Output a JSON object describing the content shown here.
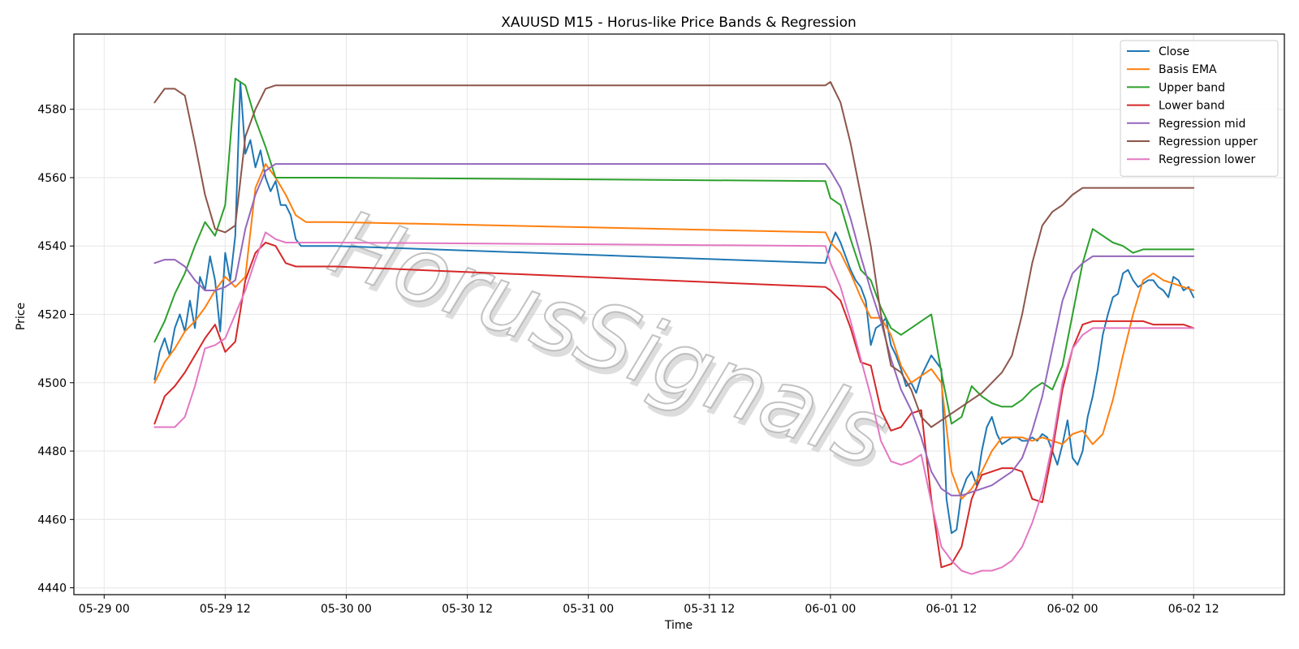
{
  "chart_data": {
    "type": "line",
    "title": "XAUUSD M15 - Horus-like Price Bands & Regression",
    "xlabel": "Time",
    "ylabel": "Price",
    "xlim": [
      -3.0,
      117.0
    ],
    "ylim": [
      4438,
      4602
    ],
    "x_ticks": [
      {
        "label": "05-29 00",
        "value": 0
      },
      {
        "label": "05-29 12",
        "value": 12
      },
      {
        "label": "05-30 00",
        "value": 24
      },
      {
        "label": "05-30 12",
        "value": 36
      },
      {
        "label": "05-31 00",
        "value": 48
      },
      {
        "label": "05-31 12",
        "value": 60
      },
      {
        "label": "06-01 00",
        "value": 72
      },
      {
        "label": "06-01 12",
        "value": 84
      },
      {
        "label": "06-02 00",
        "value": 96
      },
      {
        "label": "06-02 12",
        "value": 108
      }
    ],
    "y_ticks": [
      4440,
      4460,
      4480,
      4500,
      4520,
      4540,
      4560,
      4580
    ],
    "x_unit": "hours since 05-29 00",
    "grid": true,
    "legend_position": "top-right",
    "watermark": "HorusSignals",
    "series": [
      {
        "name": "Close",
        "color": "#1f77b4",
        "x": [
          5,
          5.5,
          6,
          6.5,
          7,
          7.5,
          8,
          8.5,
          9,
          9.5,
          10,
          10.5,
          11,
          11.5,
          12,
          12.5,
          13,
          13.5,
          14,
          14.5,
          15,
          15.5,
          16,
          16.5,
          17,
          17.5,
          18,
          18.5,
          19,
          19.5,
          20,
          20.5,
          21,
          21.5,
          22,
          22.5,
          23,
          71.5,
          72,
          72.5,
          73,
          73.5,
          74,
          74.5,
          75,
          75.5,
          76,
          76.5,
          77,
          77.5,
          78,
          78.5,
          79,
          79.5,
          80,
          80.5,
          81,
          81.5,
          82,
          82.5,
          83,
          83.5,
          84,
          84.5,
          85,
          85.5,
          86,
          86.5,
          87,
          87.5,
          88,
          88.5,
          89,
          89.5,
          90,
          90.5,
          91,
          91.5,
          92,
          92.5,
          93,
          93.5,
          94,
          94.5,
          95,
          95.5,
          96,
          96.5,
          97,
          97.5,
          98,
          98.5,
          99,
          99.5,
          100,
          100.5,
          101,
          101.5,
          102,
          102.5,
          103,
          103.5,
          104,
          104.5,
          105,
          105.5,
          106,
          106.5,
          107,
          107.5,
          108
        ],
        "y": [
          4501,
          4509,
          4513,
          4508,
          4516,
          4520,
          4515,
          4524,
          4516,
          4531,
          4527,
          4537,
          4530,
          4515,
          4538,
          4530,
          4543,
          4588,
          4567,
          4571,
          4563,
          4568,
          4560,
          4556,
          4559,
          4552,
          4552,
          4549,
          4542,
          4540,
          4540,
          4540,
          4540,
          4540,
          4540,
          4540,
          4540,
          4535,
          4540,
          4544,
          4541,
          4537,
          4533,
          4530,
          4528,
          4524,
          4511,
          4516,
          4517,
          4519,
          4511,
          4508,
          4504,
          4499,
          4500,
          4497,
          4502,
          4505,
          4508,
          4506,
          4504,
          4466,
          4456,
          4457,
          4468,
          4472,
          4474,
          4470,
          4480,
          4487,
          4490,
          4485,
          4482,
          4483,
          4484,
          4484,
          4483,
          4483,
          4484,
          4483,
          4485,
          4484,
          4480,
          4476,
          4482,
          4489,
          4478,
          4476,
          4480,
          4490,
          4496,
          4504,
          4514,
          4520,
          4525,
          4526,
          4532,
          4533,
          4530,
          4528,
          4529,
          4530,
          4530,
          4528,
          4527,
          4525,
          4531,
          4530,
          4527,
          4528,
          4525
        ]
      },
      {
        "name": "Basis EMA",
        "color": "#ff7f0e",
        "x": [
          5,
          6,
          7,
          8,
          9,
          10,
          11,
          12,
          13,
          14,
          15,
          16,
          17,
          18,
          19,
          20,
          21,
          22,
          23,
          71.5,
          72,
          73,
          74,
          75,
          76,
          77,
          78,
          79,
          80,
          81,
          82,
          83,
          84,
          85,
          86,
          87,
          88,
          89,
          90,
          91,
          92,
          93,
          94,
          95,
          96,
          97,
          98,
          99,
          100,
          101,
          102,
          103,
          104,
          105,
          106,
          107,
          108
        ],
        "y": [
          4500,
          4506,
          4510,
          4515,
          4518,
          4522,
          4527,
          4531,
          4528,
          4531,
          4557,
          4564,
          4560,
          4555,
          4549,
          4547,
          4547,
          4547,
          4547,
          4544,
          4541,
          4538,
          4532,
          4525,
          4519,
          4519,
          4514,
          4505,
          4500,
          4502,
          4504,
          4500,
          4474,
          4466,
          4469,
          4474,
          4480,
          4484,
          4484,
          4484,
          4483,
          4484,
          4483,
          4482,
          4485,
          4486,
          4482,
          4485,
          4495,
          4508,
          4520,
          4530,
          4532,
          4530,
          4529,
          4528,
          4527
        ]
      },
      {
        "name": "Upper band",
        "color": "#2ca02c",
        "x": [
          5,
          6,
          7,
          8,
          9,
          10,
          11,
          12,
          13,
          14,
          15,
          16,
          17,
          18,
          19,
          20,
          21,
          22,
          23,
          71.5,
          72,
          73,
          74,
          75,
          76,
          77,
          78,
          79,
          80,
          81,
          82,
          83,
          84,
          85,
          86,
          87,
          88,
          89,
          90,
          91,
          92,
          93,
          94,
          95,
          96,
          97,
          98,
          99,
          100,
          101,
          102,
          103,
          104,
          105,
          106,
          107,
          108
        ],
        "y": [
          4512,
          4518,
          4526,
          4532,
          4540,
          4547,
          4543,
          4552,
          4589,
          4587,
          4577,
          4569,
          4560,
          4560,
          4560,
          4560,
          4560,
          4560,
          4560,
          4559,
          4554,
          4552,
          4542,
          4533,
          4530,
          4522,
          4516,
          4514,
          4516,
          4518,
          4520,
          4503,
          4488,
          4490,
          4499,
          4496,
          4494,
          4493,
          4493,
          4495,
          4498,
          4500,
          4498,
          4505,
          4520,
          4535,
          4545,
          4543,
          4541,
          4540,
          4538,
          4539,
          4539,
          4539,
          4539,
          4539,
          4539
        ]
      },
      {
        "name": "Lower band",
        "color": "#d62728",
        "x": [
          5,
          6,
          7,
          8,
          9,
          10,
          11,
          12,
          13,
          14,
          15,
          16,
          17,
          18,
          19,
          20,
          21,
          22,
          23,
          71.5,
          72,
          73,
          74,
          75,
          76,
          77,
          78,
          79,
          80,
          81,
          82,
          83,
          84,
          85,
          86,
          87,
          88,
          89,
          90,
          91,
          92,
          93,
          94,
          95,
          96,
          97,
          98,
          99,
          100,
          101,
          102,
          103,
          104,
          105,
          106,
          107,
          108
        ],
        "y": [
          4488,
          4496,
          4499,
          4503,
          4508,
          4513,
          4517,
          4509,
          4512,
          4530,
          4538,
          4541,
          4540,
          4535,
          4534,
          4534,
          4534,
          4534,
          4534,
          4528,
          4527,
          4524,
          4516,
          4506,
          4505,
          4492,
          4486,
          4487,
          4491,
          4492,
          4466,
          4446,
          4447,
          4452,
          4466,
          4473,
          4474,
          4475,
          4475,
          4474,
          4466,
          4465,
          4480,
          4498,
          4510,
          4517,
          4518,
          4518,
          4518,
          4518,
          4518,
          4518,
          4517,
          4517,
          4517,
          4517,
          4516
        ]
      },
      {
        "name": "Regression mid",
        "color": "#9467bd",
        "x": [
          5,
          6,
          7,
          8,
          9,
          10,
          11,
          12,
          13,
          14,
          15,
          16,
          17,
          18,
          19,
          20,
          21,
          22,
          23,
          71.5,
          72,
          73,
          74,
          75,
          76,
          77,
          78,
          79,
          80,
          81,
          82,
          83,
          84,
          85,
          86,
          87,
          88,
          89,
          90,
          91,
          92,
          93,
          94,
          95,
          96,
          97,
          98,
          99,
          100,
          101,
          102,
          103,
          104,
          105,
          106,
          107,
          108
        ],
        "y": [
          4535,
          4536,
          4536,
          4534,
          4530,
          4527,
          4527,
          4528,
          4530,
          4545,
          4555,
          4562,
          4564,
          4564,
          4564,
          4564,
          4564,
          4564,
          4564,
          4564,
          4562,
          4557,
          4548,
          4537,
          4527,
          4518,
          4507,
          4498,
          4492,
          4484,
          4474,
          4469,
          4467,
          4467,
          4468,
          4469,
          4470,
          4472,
          4474,
          4478,
          4486,
          4496,
          4510,
          4524,
          4532,
          4535,
          4537,
          4537,
          4537,
          4537,
          4537,
          4537,
          4537,
          4537,
          4537,
          4537,
          4537
        ]
      },
      {
        "name": "Regression upper",
        "color": "#8c564b",
        "x": [
          5,
          6,
          7,
          8,
          9,
          10,
          11,
          12,
          13,
          14,
          15,
          16,
          17,
          18,
          19,
          20,
          21,
          22,
          23,
          71.5,
          72,
          73,
          74,
          75,
          76,
          77,
          78,
          79,
          80,
          81,
          82,
          83,
          84,
          85,
          86,
          87,
          88,
          89,
          90,
          91,
          92,
          93,
          94,
          95,
          96,
          97,
          98,
          99,
          100,
          101,
          102,
          103,
          104,
          105,
          106,
          107,
          108
        ],
        "y": [
          4582,
          4586,
          4586,
          4584,
          4570,
          4555,
          4545,
          4544,
          4546,
          4572,
          4580,
          4586,
          4587,
          4587,
          4587,
          4587,
          4587,
          4587,
          4587,
          4587,
          4588,
          4582,
          4570,
          4555,
          4540,
          4520,
          4505,
          4503,
          4498,
          4490,
          4487,
          4489,
          4491,
          4493,
          4495,
          4497,
          4500,
          4503,
          4508,
          4520,
          4535,
          4546,
          4550,
          4552,
          4555,
          4557,
          4557,
          4557,
          4557,
          4557,
          4557,
          4557,
          4557,
          4557,
          4557,
          4557,
          4557
        ]
      },
      {
        "name": "Regression lower",
        "color": "#e377c2",
        "x": [
          5,
          6,
          7,
          8,
          9,
          10,
          11,
          12,
          13,
          14,
          15,
          16,
          17,
          18,
          19,
          20,
          21,
          22,
          23,
          71.5,
          72,
          73,
          74,
          75,
          76,
          77,
          78,
          79,
          80,
          81,
          82,
          83,
          84,
          85,
          86,
          87,
          88,
          89,
          90,
          91,
          92,
          93,
          94,
          95,
          96,
          97,
          98,
          99,
          100,
          101,
          102,
          103,
          104,
          105,
          106,
          107,
          108
        ],
        "y": [
          4487,
          4487,
          4487,
          4490,
          4499,
          4510,
          4511,
          4513,
          4520,
          4527,
          4536,
          4544,
          4542,
          4541,
          4541,
          4541,
          4541,
          4541,
          4541,
          4540,
          4535,
          4528,
          4518,
          4507,
          4496,
          4483,
          4477,
          4476,
          4477,
          4479,
          4465,
          4452,
          4448,
          4445,
          4444,
          4445,
          4445,
          4446,
          4448,
          4452,
          4459,
          4468,
          4482,
          4500,
          4510,
          4514,
          4516,
          4516,
          4516,
          4516,
          4516,
          4516,
          4516,
          4516,
          4516,
          4516,
          4516
        ]
      }
    ]
  }
}
